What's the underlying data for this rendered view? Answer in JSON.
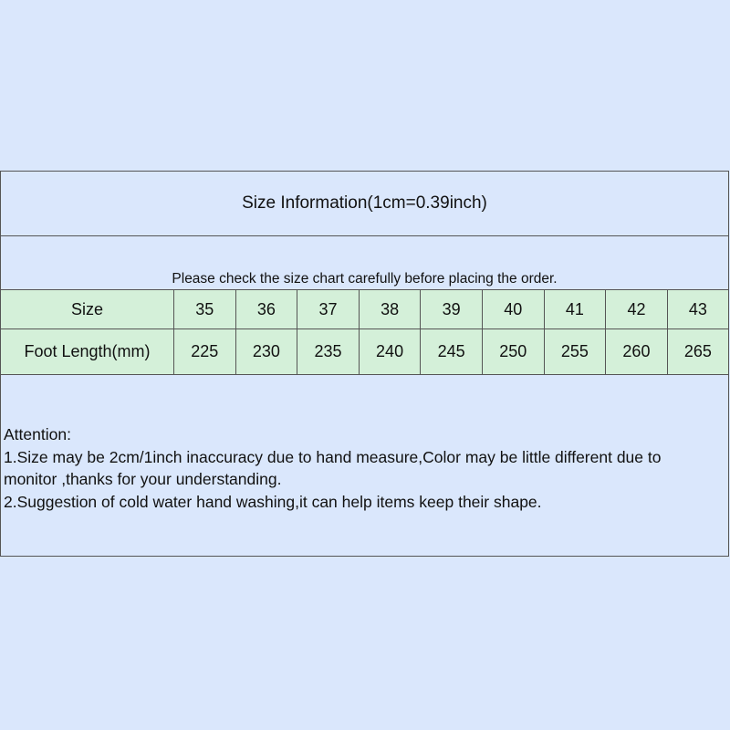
{
  "title": "Size Information(1cm=0.39inch)",
  "subtitle": "Please check the size chart carefully before placing the order.",
  "table": {
    "size_label": "Size",
    "sizes": [
      "35",
      "36",
      "37",
      "38",
      "39",
      "40",
      "41",
      "42",
      "43"
    ],
    "length_label": "Foot Length(mm)",
    "lengths": [
      "225",
      "230",
      "235",
      "240",
      "245",
      "250",
      "255",
      "260",
      "265"
    ]
  },
  "attention": {
    "heading": "Attention:",
    "line1a": "1.Size may be 2cm/1inch inaccuracy due to hand measure,Color may be little different due to",
    "line1b": "monitor ,thanks for your understanding.",
    "line2": "2.Suggestion of cold water hand washing,it can help items keep their shape."
  },
  "colors": {
    "background": "#dae7fc",
    "table_row": "#d4f0d9",
    "border": "#555555"
  }
}
